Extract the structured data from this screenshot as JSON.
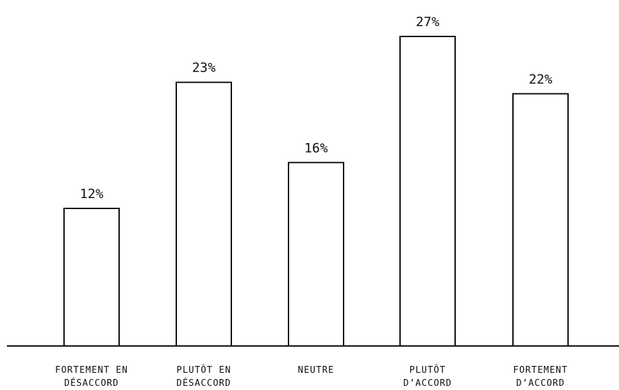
{
  "chart_data": {
    "type": "bar",
    "title": "",
    "xlabel": "",
    "ylabel": "",
    "ylim": [
      0,
      28
    ],
    "grid": false,
    "categories": [
      [
        "FORTEMENT EN",
        "DÉSACCORD"
      ],
      [
        "PLUTÔT EN",
        "DÉSACCORD"
      ],
      [
        "NEUTRE"
      ],
      [
        "PLUTÔT",
        "D’ACCORD"
      ],
      [
        "FORTEMENT",
        "D’ACCORD"
      ]
    ],
    "values": [
      12,
      23,
      16,
      27,
      22
    ],
    "value_labels": [
      "12%",
      "23%",
      "16%",
      "27%",
      "22%"
    ]
  },
  "colors": {
    "bar_fill": "#ffffff",
    "bar_stroke": "#111111",
    "axis": "#111111",
    "text": "#111111"
  }
}
